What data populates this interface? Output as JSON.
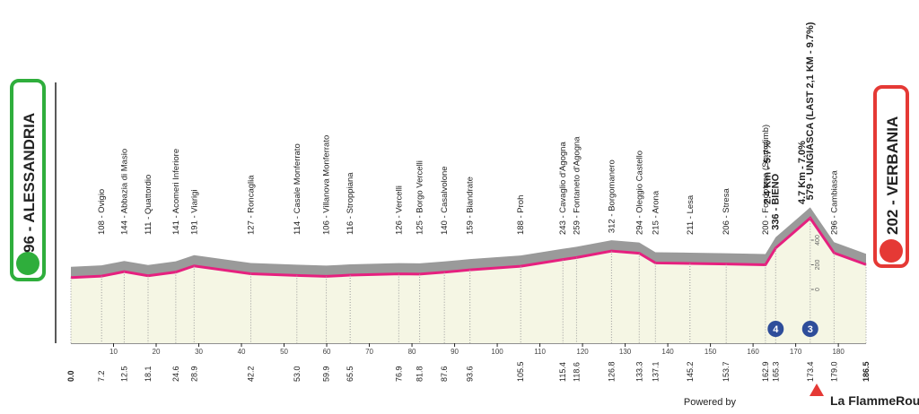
{
  "chart_data": {
    "type": "area",
    "x": [
      0,
      7.2,
      12.5,
      18.1,
      24.6,
      28.9,
      42.2,
      53,
      59.9,
      65.5,
      76.9,
      81.8,
      87.6,
      93.6,
      105.5,
      115.4,
      118.6,
      126.8,
      133.3,
      137.1,
      145.2,
      153.7,
      162.9,
      165.3,
      173.4,
      179,
      186.5
    ],
    "x_labels": [
      "0.0",
      "7.2",
      "12.5",
      "18.1",
      "24.6",
      "28.9",
      "42.2",
      "53.0",
      "59.9",
      "65.5",
      "76.9",
      "81.8",
      "87.6",
      "93.6",
      "105.5",
      "115.4",
      "118.6",
      "126.8",
      "133.3",
      "137.1",
      "145.2",
      "153.7",
      "162.9",
      "165.3",
      "173.4",
      "179.0",
      "186.5"
    ],
    "values": [
      96,
      108,
      144,
      111,
      141,
      191,
      127,
      114,
      106,
      116,
      126,
      125,
      140,
      159,
      188,
      243,
      259,
      312,
      294,
      215,
      211,
      206,
      200,
      336,
      579,
      296,
      202
    ],
    "point_labels": [
      "96 - ALESSANDRIA",
      "108 - Ovigio",
      "144 - Abbazia di Masio",
      "111 - Quattordio",
      "141 - Acomeri Inferiore",
      "191 - Viarigi",
      "127 - Roncaglia",
      "114 - Casale Monferrato",
      "106 - Villanova Monferrato",
      "116 - Stroppiana",
      "126 - Vercelli",
      "125 - Borgo Vercelli",
      "140 - Casalvolone",
      "159 - Biandrate",
      "188 - Proh",
      "243 - Cavaglio d'Agogna",
      "259 - Fontaneto d'Agogna",
      "312 - Borgomanero",
      "294 - Oleggio Castello",
      "215 - Arona",
      "211 - Lesa",
      "206 - Stresa",
      "200 - Fondotoce (Start climb)",
      "336 - BIENO",
      "579 - UNGIASCA (LAST 2,1 KM - 9.7%)",
      "296 - Cambiasca",
      "202 - VERBANIA"
    ],
    "color": "#e6207f",
    "xlim": [
      0,
      186.5
    ],
    "xticks": [
      10,
      20,
      30,
      40,
      50,
      60,
      70,
      80,
      90,
      100,
      110,
      120,
      130,
      140,
      150,
      160,
      170,
      180
    ],
    "ylim": [
      0,
      600
    ],
    "yticks": [
      0,
      200,
      400
    ],
    "climbs": [
      {
        "x": 165.3,
        "category": 4
      },
      {
        "x": 173.4,
        "category": 3
      }
    ],
    "annotations": [
      {
        "x": 165.3,
        "text": "2.4 Km - 5.7%"
      },
      {
        "x": 173.4,
        "text": "4.7 Km - 7.0%"
      }
    ]
  },
  "footer": {
    "powered": "Powered by",
    "brand": "La FlammeRouge"
  }
}
